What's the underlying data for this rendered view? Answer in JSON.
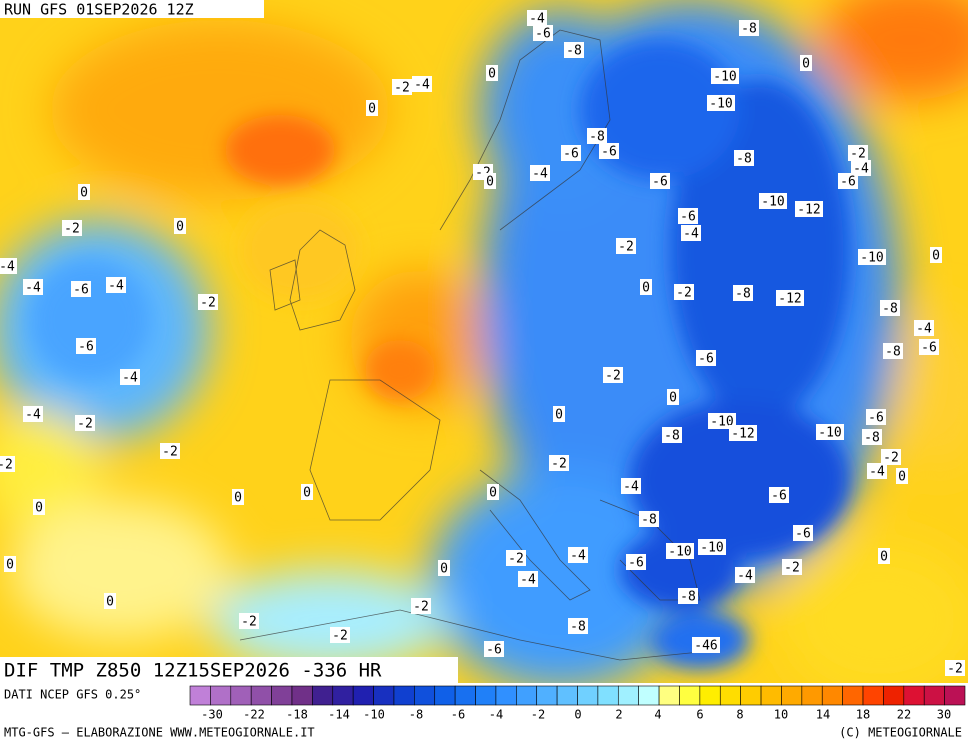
{
  "header": {
    "run": "RUN GFS 01SEP2026 12Z"
  },
  "map": {
    "contour_labels": [
      "-4",
      "-6",
      "-8",
      "-8",
      "0",
      "-2",
      "-4",
      "0",
      "0",
      "-10",
      "-10",
      "-8",
      "-6",
      "-6",
      "-8",
      "-2",
      "-4",
      "-6",
      "-2",
      "0",
      "-4",
      "-6",
      "0",
      "0",
      "-2",
      "-10",
      "-12",
      "-6",
      "-4",
      "-2",
      "-10",
      "0",
      "-4",
      "-4",
      "-6",
      "-4",
      "-2",
      "0",
      "-2",
      "-8",
      "-12",
      "-8",
      "-4",
      "-6",
      "-8",
      "-6",
      "-4",
      "-6",
      "-2",
      "0",
      "-4",
      "-2",
      "0",
      "-10",
      "-12",
      "-8",
      "-10",
      "-6",
      "-8",
      "-2",
      "-4",
      "0",
      "-2",
      "-2",
      "-2",
      "0",
      "0",
      "0",
      "0",
      "-4",
      "-6",
      "-8",
      "-6",
      "-10",
      "-10",
      "-2",
      "-4",
      "-6",
      "-4",
      "-2",
      "0",
      "0",
      "0",
      "-4",
      "0",
      "-2",
      "-8",
      "-2",
      "-2",
      "-8",
      "-46",
      "-6",
      "-2"
    ]
  },
  "footer": {
    "product": "DIF TMP Z850 12Z15SEP2026 -336 HR",
    "source": "DATI NCEP GFS 0.25°",
    "credit_left": "MTG-GFS — ELABORAZIONE WWW.METEOGIORNALE.IT",
    "credit_right": "(C) METEOGIORNALE"
  },
  "legend": {
    "colors": [
      "#c080d8",
      "#b070c8",
      "#a060b8",
      "#9050a8",
      "#804098",
      "#703088",
      "#402090",
      "#3020a0",
      "#2020b0",
      "#1830c0",
      "#1040d0",
      "#1050dc",
      "#1060e8",
      "#1870f0",
      "#2080f8",
      "#3090ff",
      "#40a0ff",
      "#50b0ff",
      "#60c0ff",
      "#70d0ff",
      "#80e0ff",
      "#a0f0ff",
      "#c0ffff",
      "#ffff80",
      "#ffff40",
      "#ffee00",
      "#ffdd00",
      "#ffcc00",
      "#ffbb00",
      "#ffaa00",
      "#ff9900",
      "#ff8800",
      "#ff6600",
      "#ff4400",
      "#ee2200",
      "#dd1133",
      "#cc1144",
      "#bb1155"
    ],
    "labels": [
      "-30",
      "-22",
      "-18",
      "-14",
      "-10",
      "-8",
      "-6",
      "-4",
      "-2",
      "0",
      "2",
      "4",
      "6",
      "8",
      "10",
      "14",
      "18",
      "22",
      "30"
    ]
  }
}
